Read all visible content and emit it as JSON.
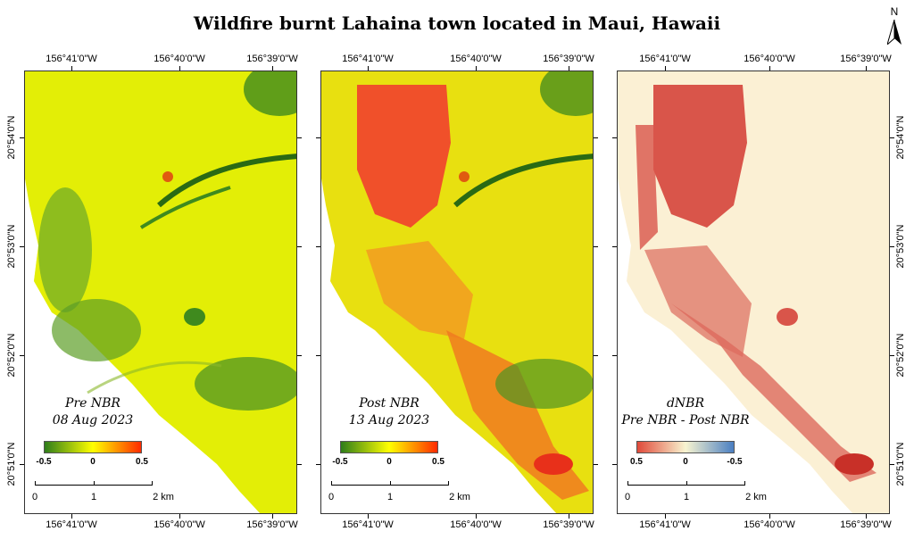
{
  "title": "Wildfire burnt Lahaina town located in Maui, Hawaii",
  "north_arrow": "N",
  "longitude_ticks": [
    "156°41'0\"W",
    "156°40'0\"W",
    "156°39'0\"W"
  ],
  "latitude_ticks": [
    "20°54'0\"N",
    "20°53'0\"N",
    "20°52'0\"N",
    "20°51'0\"N"
  ],
  "scalebar": {
    "labels": [
      "0",
      "1",
      "2 km"
    ]
  },
  "panels": [
    {
      "legend_line1": "Pre NBR",
      "legend_line2": "08 Aug 2023",
      "colorbar_labels": [
        "-0.5",
        "0",
        "0.5"
      ],
      "colorbar_colors": [
        "#2e7d1a",
        "#ffff00",
        "#ff2a00"
      ]
    },
    {
      "legend_line1": "Post NBR",
      "legend_line2": "13 Aug 2023",
      "colorbar_labels": [
        "-0.5",
        "0",
        "0.5"
      ],
      "colorbar_colors": [
        "#2e7d1a",
        "#ffff00",
        "#ff2a00"
      ]
    },
    {
      "legend_line1": "dNBR",
      "legend_line2": "Pre NBR - Post NBR",
      "colorbar_labels": [
        "0.5",
        "0",
        "-0.5"
      ],
      "colorbar_colors": [
        "#e04a3a",
        "#f8f4d0",
        "#4a7fc2"
      ]
    }
  ]
}
